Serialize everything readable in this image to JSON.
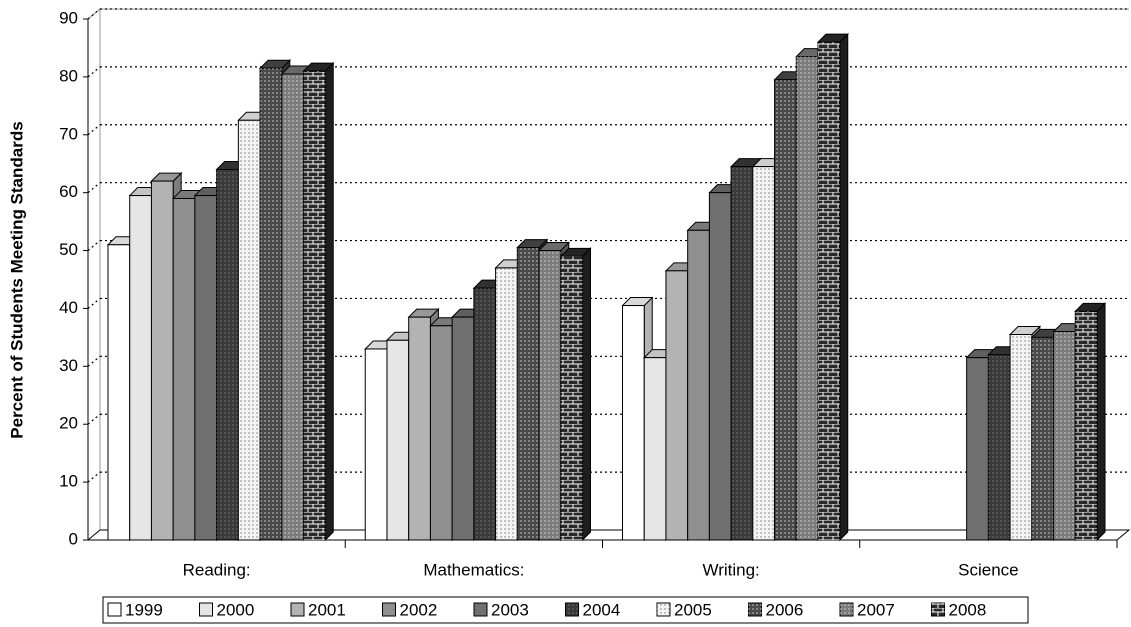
{
  "chart_data": {
    "type": "bar3d",
    "y_label": "Percent of Students Meeting Standards",
    "categories": [
      "Reading:",
      "Mathematics:",
      "Writing:",
      "Science"
    ],
    "ylim": [
      0,
      90
    ],
    "yticks": [
      0,
      10,
      20,
      30,
      40,
      50,
      60,
      70,
      80,
      90
    ],
    "grid": true,
    "series": [
      {
        "name": "1999",
        "color": "#ffffff",
        "values": [
          51,
          33,
          40.5,
          null
        ]
      },
      {
        "name": "2000",
        "color": "#e6e6e6",
        "values": [
          59.5,
          34.5,
          31.5,
          null
        ]
      },
      {
        "name": "2001",
        "color": "#b3b3b3",
        "values": [
          62,
          38.5,
          46.5,
          null
        ]
      },
      {
        "name": "2002",
        "color": "#8f8f8f",
        "values": [
          59,
          37,
          53.5,
          null
        ]
      },
      {
        "name": "2003",
        "color": "#707070",
        "values": [
          59.5,
          38.5,
          60,
          31.5
        ]
      },
      {
        "name": "2004",
        "color": "#3a3a3a",
        "values": [
          64,
          43.5,
          64.5,
          32
        ]
      },
      {
        "name": "2005",
        "color": "#f4f4f4",
        "values": [
          72.5,
          47,
          64.5,
          35.5
        ]
      },
      {
        "name": "2006",
        "color": "#4a4a4a",
        "values": [
          81.5,
          50.5,
          79.5,
          35
        ]
      },
      {
        "name": "2007",
        "color": "#7c7c7c",
        "values": [
          80.5,
          50,
          83.5,
          36
        ]
      },
      {
        "name": "2008",
        "color": "#2a2a2a",
        "values": [
          81,
          49,
          86,
          39.5
        ]
      }
    ]
  }
}
